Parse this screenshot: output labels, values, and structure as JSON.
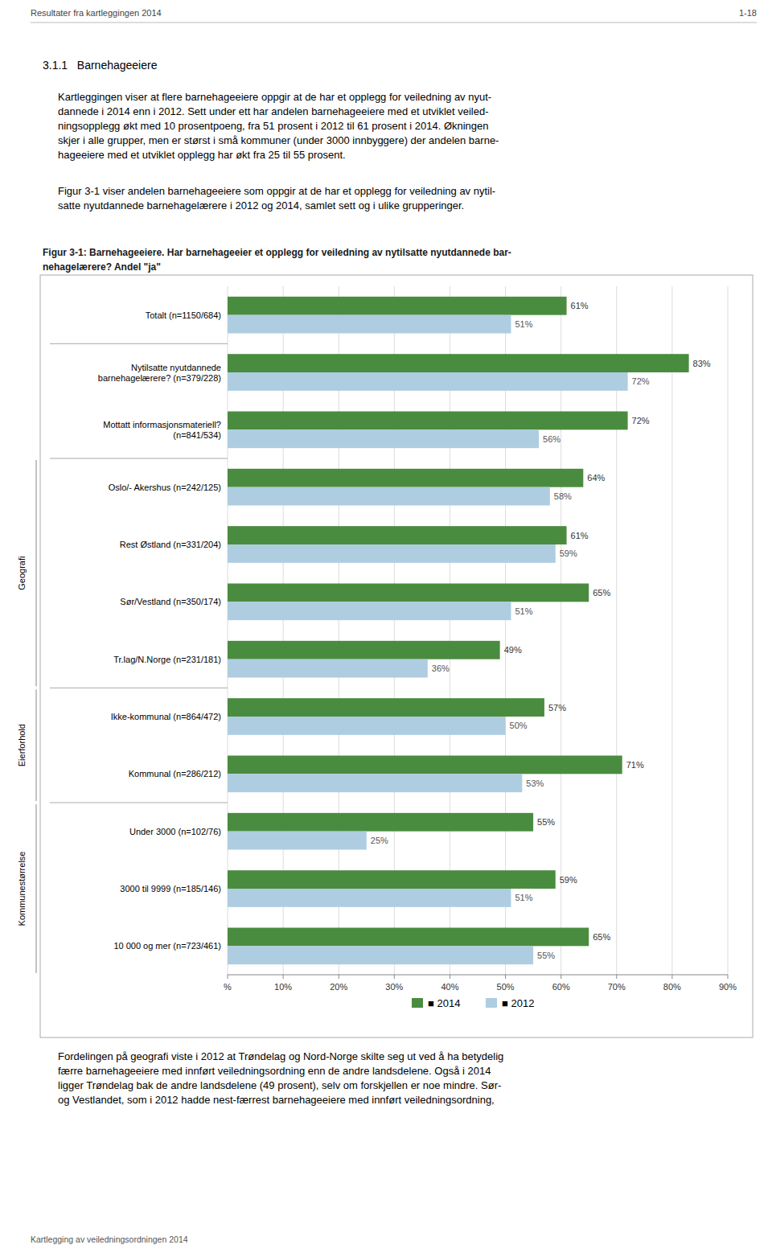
{
  "page": {
    "header_left": "Resultater fra kartleggingen 2014",
    "header_right": "1-18",
    "section_title": "3.1.1   Barnehageeiere",
    "body_text1": [
      "Kartleggingen viser at flere barnehageeiere oppgir at de har et opplegg for veiledning av nyut-",
      "dannede i 2014 enn i 2012. Sett under ett har andelen barnehageeiere med et utviklet veiled-",
      "ningsopplegg økt med 10 prosentpoeng, fra 51 prosent i 2012 til 61 prosent i 2014. Økningen",
      "skjer i alle grupper, men er størst i små kommuner (under 3000 innbyggere) der andelen barne-",
      "hageeiere med et utviklet opplegg har økt fra 25 til 55 prosent."
    ],
    "body_text2": [
      "Figur 3-1 viser andelen barnehageeiere som oppgir at de har et opplegg for veiledning av nytil-",
      "satte nyutdannede barnehagelærere i 2012 og 2014, samlet sett og i ulike grupperinger."
    ],
    "body_text3": [
      "Fordelingen på geografi viste i 2012 at Trøndelag og Nord-Norge skilte seg ut ved å ha betydelig",
      "færre barnehageeiere med innført veiledningsordning enn de andre landsdelene. Også i 2014",
      "ligger Trøndelag bak de andre landsdelene (49 prosent), selv om forskjellen er noe mindre. Sør-",
      "og Vestlandet, som i 2012 hadde nest-færrest barnehageeiere med innført veiledningsordning,"
    ],
    "footer": "Kartlegging av veiledningsordningen 2014"
  },
  "chart_data": {
    "type": "bar",
    "orientation": "horizontal",
    "title": [
      "Figur 3-1: Barnehageeiere. Har barnehageeier et opplegg for veiledning av nytilsatte nyutdannede bar-",
      "nehagelærere? Andel \"ja\""
    ],
    "categories": [
      "Totalt (n=1150/684)",
      "Nytilsatte nyutdannede\nbarnehagelærere? (n=379/228)",
      "Mottatt informasjonsmateriell?\n(n=841/534)",
      "Oslo/- Akershus (n=242/125)",
      "Rest Østland (n=331/204)",
      "Sør/Vestland (n=350/174)",
      "Tr.lag/N.Norge (n=231/181)",
      "Ikke-kommunal (n=864/472)",
      "Kommunal (n=286/212)",
      "Under 3000 (n=102/76)",
      "3000 til 9999 (n=185/146)",
      "10 000 og mer (n=723/461)"
    ],
    "category_groups": [
      {
        "name": null,
        "count": 1
      },
      {
        "name": null,
        "count": 2
      },
      {
        "name": "Geografi",
        "count": 4
      },
      {
        "name": "Eierforhold",
        "count": 2
      },
      {
        "name": "Kommunestørrelse",
        "count": 3
      }
    ],
    "series": [
      {
        "name": "■ 2014",
        "color": "#4a8c3f",
        "values": [
          61,
          83,
          72,
          64,
          61,
          65,
          49,
          57,
          71,
          55,
          59,
          65
        ],
        "value_labels": [
          "61%",
          "83%",
          "72%",
          "64%",
          "61%",
          "65%",
          "49%",
          "57%",
          "71%",
          "55%",
          "59%",
          "65%"
        ]
      },
      {
        "name": "■ 2012",
        "color": "#aecde1",
        "values": [
          51,
          72,
          56,
          58,
          59,
          51,
          36,
          50,
          53,
          25,
          51,
          55
        ],
        "value_labels": [
          "51%",
          "72%",
          "56%",
          "58%",
          "59%",
          "51%",
          "36%",
          "50%",
          "53%",
          "25%",
          "51%",
          "55%"
        ]
      }
    ],
    "xlim": [
      0,
      90
    ],
    "xticks": [
      {
        "value": 0,
        "label": "%"
      },
      {
        "value": 10,
        "label": "10%"
      },
      {
        "value": 20,
        "label": "20%"
      },
      {
        "value": 30,
        "label": "30%"
      },
      {
        "value": 40,
        "label": "40%"
      },
      {
        "value": 50,
        "label": "50%"
      },
      {
        "value": 60,
        "label": "60%"
      },
      {
        "value": 70,
        "label": "70%"
      },
      {
        "value": 80,
        "label": "80%"
      },
      {
        "value": 90,
        "label": "90%"
      }
    ],
    "grid": true,
    "data_labels": true,
    "legend": "bottom"
  }
}
